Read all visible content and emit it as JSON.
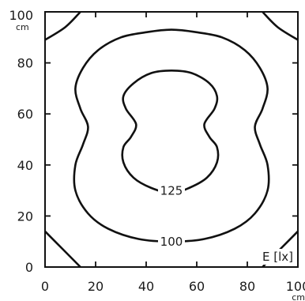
{
  "chart_data": {
    "type": "contour",
    "quantity_label": "E [lx]",
    "xlim": [
      0,
      100
    ],
    "ylim": [
      0,
      100
    ],
    "x_ticks": [
      "0",
      "20",
      "40",
      "60",
      "80",
      "100"
    ],
    "y_ticks": [
      "0",
      "20",
      "40",
      "60",
      "80",
      "100"
    ],
    "x_unit": "cm",
    "y_unit": "cm",
    "grid": false,
    "levels": [
      {
        "value": 125,
        "label": "125",
        "closed": true,
        "points": [
          [
            50,
            29
          ],
          [
            57,
            31
          ],
          [
            64,
            35
          ],
          [
            68,
            41
          ],
          [
            68,
            47
          ],
          [
            65,
            51
          ],
          [
            63,
            56
          ],
          [
            67,
            62
          ],
          [
            68,
            67
          ],
          [
            65,
            72
          ],
          [
            58,
            76
          ],
          [
            50,
            77
          ],
          [
            42,
            76
          ],
          [
            35,
            72
          ],
          [
            31,
            67
          ],
          [
            32,
            62
          ],
          [
            36,
            56
          ],
          [
            34,
            51
          ],
          [
            31,
            47
          ],
          [
            31,
            41
          ],
          [
            35,
            35
          ],
          [
            42,
            31
          ],
          [
            50,
            29
          ]
        ],
        "label_pos": [
          50,
          30
        ]
      },
      {
        "value": 100,
        "label": "100",
        "closed": true,
        "points": [
          [
            50,
            10
          ],
          [
            63,
            11
          ],
          [
            75,
            15
          ],
          [
            83,
            21
          ],
          [
            88,
            30
          ],
          [
            88,
            40
          ],
          [
            85,
            48
          ],
          [
            83,
            55
          ],
          [
            86,
            62
          ],
          [
            88,
            70
          ],
          [
            85,
            78
          ],
          [
            79,
            85
          ],
          [
            70,
            90
          ],
          [
            60,
            92
          ],
          [
            50,
            93
          ],
          [
            40,
            92
          ],
          [
            30,
            90
          ],
          [
            21,
            85
          ],
          [
            15,
            78
          ],
          [
            12,
            70
          ],
          [
            14,
            62
          ],
          [
            17,
            55
          ],
          [
            15,
            48
          ],
          [
            12,
            40
          ],
          [
            12,
            30
          ],
          [
            17,
            21
          ],
          [
            25,
            15
          ],
          [
            37,
            11
          ],
          [
            50,
            10
          ]
        ],
        "label_pos": [
          50,
          10
        ]
      },
      {
        "value": 50,
        "label": "",
        "closed": false,
        "segments": [
          [
            [
              0,
              89
            ],
            [
              8,
              94
            ],
            [
              14,
              100
            ]
          ],
          [
            [
              86,
              100
            ],
            [
              92,
              94
            ],
            [
              100,
              89
            ]
          ],
          [
            [
              0,
              14
            ],
            [
              7,
              7
            ],
            [
              14,
              0
            ]
          ],
          [
            [
              86,
              0
            ],
            [
              93,
              7
            ],
            [
              100,
              14
            ]
          ]
        ]
      }
    ]
  }
}
